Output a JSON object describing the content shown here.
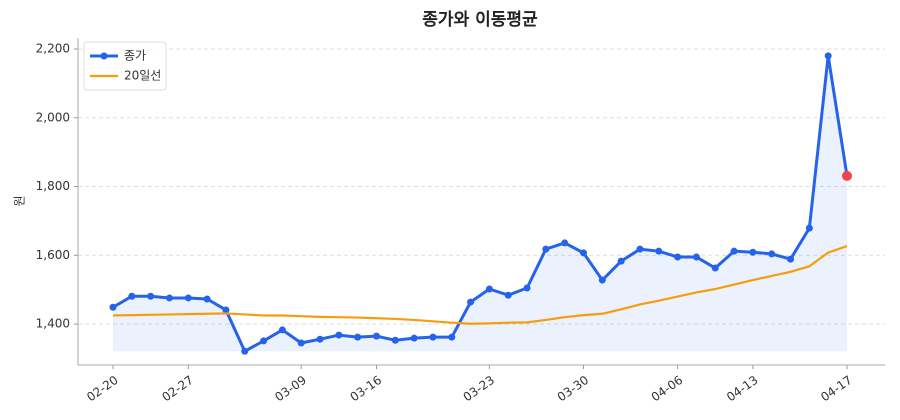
{
  "chart_data": {
    "type": "line",
    "title": "종가와 이동평균",
    "y_label": "원",
    "categories": [
      "02-20",
      null,
      null,
      null,
      "02-27",
      null,
      null,
      null,
      null,
      null,
      "03-09",
      null,
      null,
      null,
      "03-16",
      null,
      null,
      null,
      null,
      null,
      "03-23",
      null,
      null,
      null,
      null,
      "03-30",
      null,
      null,
      null,
      null,
      "04-06",
      null,
      null,
      null,
      "04-13",
      null,
      null,
      null,
      null,
      "04-17"
    ],
    "series": [
      {
        "name": "종가",
        "color": "#2563eb",
        "marker": true,
        "fill": true,
        "values": [
          1449,
          1481,
          1481,
          1476,
          1476,
          1473,
          1441,
          1321,
          1351,
          1383,
          1345,
          1356,
          1368,
          1362,
          1365,
          1353,
          1359,
          1362,
          1362,
          1464,
          1502,
          1484,
          1505,
          1618,
          1636,
          1607,
          1528,
          1583,
          1618,
          1612,
          1595,
          1595,
          1563,
          1612,
          1609,
          1604,
          1589,
          1679,
          2180,
          1831
        ],
        "last_color": "#ef4444"
      },
      {
        "name": "20일선",
        "color": "#f59e0b",
        "marker": false,
        "fill": false,
        "values": [
          1425,
          1426,
          1427,
          1428,
          1429,
          1430,
          1431,
          1428,
          1425,
          1425,
          1423,
          1421,
          1420,
          1419,
          1417,
          1415,
          1412,
          1408,
          1404,
          1401,
          1402,
          1404,
          1405,
          1412,
          1420,
          1426,
          1430,
          1443,
          1457,
          1468,
          1480,
          1492,
          1502,
          1515,
          1528,
          1540,
          1552,
          1568,
          1608,
          1627
        ]
      }
    ],
    "ylim": [
      1281,
      2232
    ],
    "yticks": [
      {
        "value": 1400,
        "label": "1,400"
      },
      {
        "value": 1600,
        "label": "1,600"
      },
      {
        "value": 1800,
        "label": "1,800"
      },
      {
        "value": 2000,
        "label": "2,000"
      },
      {
        "value": 2200,
        "label": "2,200"
      }
    ],
    "grid": true,
    "legend": "upper-left"
  }
}
